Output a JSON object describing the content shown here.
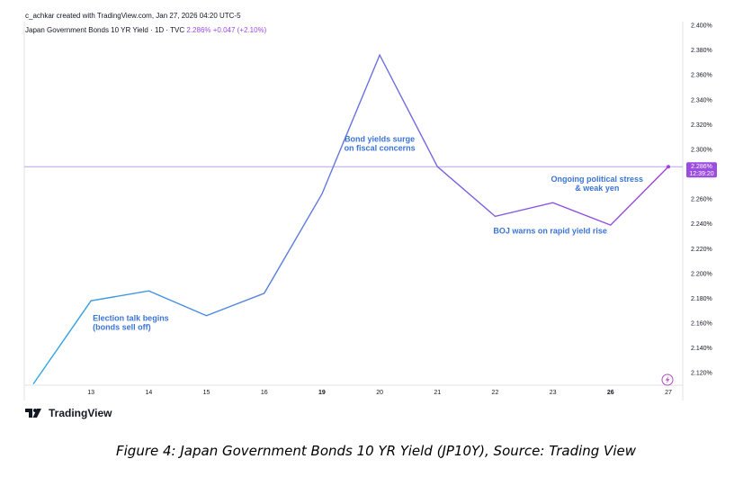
{
  "header": {
    "created_by": "c_achkar created with TradingView.com, Jan 27, 2026 04:20 UTC-5",
    "symbol": "Japan Government Bonds 10 YR Yield · 1D · TVC",
    "last_value": "2.286%",
    "change": "+0.047 (+2.10%)"
  },
  "chart_data": {
    "type": "line",
    "x": [
      "12",
      "13",
      "14",
      "15",
      "16",
      "19",
      "20",
      "21",
      "22",
      "23",
      "26",
      "27"
    ],
    "tick_labels": [
      "13",
      "14",
      "15",
      "16",
      "19",
      "20",
      "21",
      "22",
      "23",
      "26",
      "27"
    ],
    "values": [
      2.111,
      2.178,
      2.186,
      2.166,
      2.184,
      2.264,
      2.376,
      2.286,
      2.246,
      2.257,
      2.239,
      2.286
    ],
    "ylim": [
      2.11,
      2.4
    ],
    "y_ticks": [
      "2.120%",
      "2.140%",
      "2.160%",
      "2.180%",
      "2.200%",
      "2.220%",
      "2.240%",
      "2.260%",
      "2.280%",
      "2.300%",
      "2.320%",
      "2.340%",
      "2.360%",
      "2.380%",
      "2.400%"
    ],
    "y_tick_values": [
      2.12,
      2.14,
      2.16,
      2.18,
      2.2,
      2.22,
      2.24,
      2.26,
      2.28,
      2.3,
      2.32,
      2.34,
      2.36,
      2.38,
      2.4
    ],
    "colors": {
      "start": "#2ea7e0",
      "end": "#a040e0",
      "annotation": "#3b74d4",
      "badge": "#9b4de0"
    },
    "price_line": 2.286,
    "badge": {
      "value": "2.286%",
      "time": "12:39:20"
    },
    "annotations": [
      {
        "lines": [
          "Election talk begins",
          "(bonds sell off)"
        ],
        "x": "13",
        "y": 2.162,
        "anchor": "start"
      },
      {
        "lines": [
          "Bond yields surge",
          "on fiscal concerns"
        ],
        "x": "20",
        "y": 2.306,
        "anchor": "middle"
      },
      {
        "lines": [
          "Ongoing political stress",
          "& weak yen"
        ],
        "x": "26",
        "y": 2.274,
        "anchor": "middle"
      },
      {
        "lines": [
          "BOJ warns on rapid yield rise"
        ],
        "x": "23",
        "y": 2.232,
        "anchor": "middle"
      }
    ]
  },
  "logo": {
    "text": "TradingView"
  },
  "caption": "Figure 4: Japan Government Bonds 10 YR Yield (JP10Y), Source: Trading View"
}
